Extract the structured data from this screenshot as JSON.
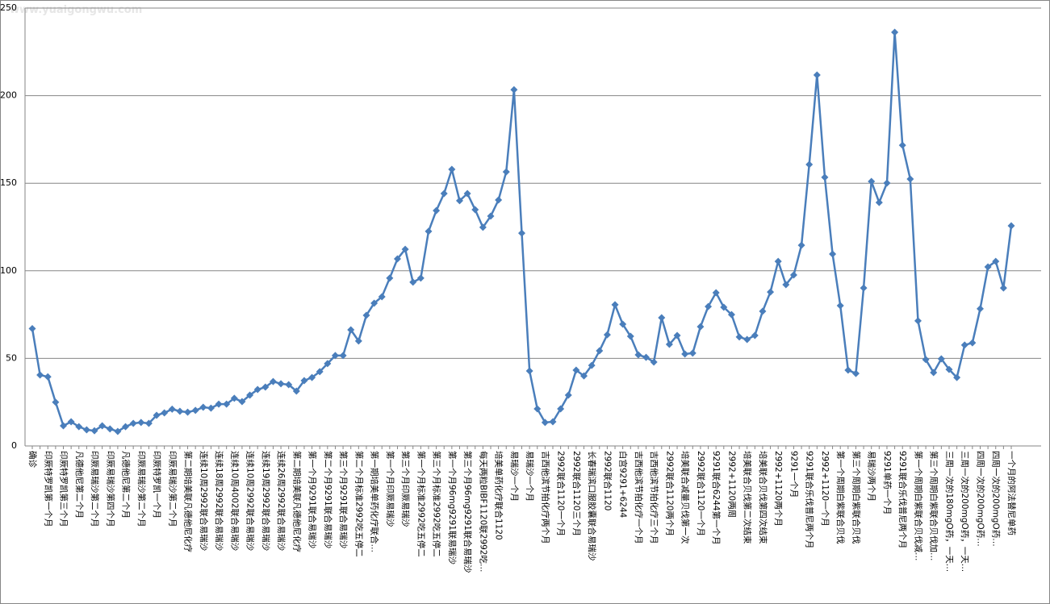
{
  "chart_data": {
    "type": "line",
    "watermark": "www.yuaigongwu.com",
    "categories": [
      "确诊",
      null,
      "印厥特罗凯第一个月",
      null,
      "印厥特罗凯第三个月",
      null,
      "凡德他尼第二个月",
      null,
      "印厥易瑞沙第二个月",
      null,
      "印厥易瑞沙第四个月",
      null,
      "凡德他尼第二个月",
      null,
      "印厥易瑞沙第二个月",
      null,
      "印厥特罗凯一个月",
      null,
      "印厥易瑞沙第二个月",
      null,
      "第二期培美联凡德他尼化疗",
      null,
      "连续10周2992联合易瑞沙",
      null,
      "连续18周2992联合易瑞沙",
      null,
      "连续10周4002联合易瑞沙",
      null,
      "连续10周2992联合易瑞沙",
      null,
      "连续19周2992联合易瑞沙",
      null,
      "连续26周2992联合易瑞沙",
      null,
      "第二期培美联凡德他尼化疗",
      null,
      "第一个月9291联合易瑞沙",
      null,
      "第二个月9291联合易瑞沙",
      null,
      "第三个月9291联合易瑞沙",
      null,
      "第二个月标准2992吃五停二",
      null,
      "第一期培美单药化疗联合…",
      null,
      "第一个月印厥易瑞沙",
      null,
      "第三个月印厥易瑞沙",
      null,
      "第一个月标准2992吃五停二",
      null,
      "第三个月标准2992吃五停二",
      null,
      "第一个月96mg9291联易瑞沙",
      null,
      "第三个月96mg9291联合易瑞沙",
      null,
      "每天两粒BIBF1120联2992吃…",
      null,
      "培美单药化疗联合1120",
      null,
      "易瑞沙一个月",
      null,
      "易瑞沙一个月",
      null,
      "吉西他滨节拍化疗两个月",
      null,
      "2992联合1120一个月",
      null,
      "2992联合1120三个月",
      null,
      "长春瑞滨口服胶囊联合易瑞沙",
      null,
      "2992联合1120",
      null,
      "白宫9291+6244",
      null,
      "吉西他滨节拍化疗一个月",
      null,
      "吉西他滨节拍化疗三个月",
      null,
      "2992联合1120两个月",
      null,
      "培美联合减量贝伐第一次",
      null,
      "2992联合1120一个月",
      null,
      "9291联合6244第一个月",
      null,
      "2992+1120两周",
      null,
      "培美联合贝伐第二次结束",
      null,
      "培美联合贝伐第四次结束",
      null,
      "2992+1120两个月",
      null,
      "9291一个月",
      null,
      "9291联合乐伐普尼两个月",
      null,
      "2992+1120一个月",
      null,
      "第一个周期白紫联合贝伐",
      null,
      "第三个周期白紫联合贝伐",
      null,
      "易瑞沙两个月",
      null,
      "9291单药一个月",
      null,
      "9291联合乐伐普尼两个月",
      null,
      "第一个周期白紫联合贝伐减…",
      null,
      "第三个周期白紫联合贝伐加…",
      null,
      "三周一次的180mgO药，一天…",
      null,
      "三周一次的200mgO药，一天…",
      null,
      "四周一次的200mgO药…",
      null,
      "四周一次的200mgO药…",
      null,
      "一个月的阿法替尼单药"
    ],
    "series": [
      {
        "color": "#4a7ebb",
        "values": [
          67,
          40.5,
          39.5,
          25,
          11.5,
          13.8,
          11,
          9.2,
          8.7,
          11.5,
          9.7,
          8.3,
          11,
          12.9,
          13.4,
          12.9,
          17.5,
          18.9,
          21,
          19.8,
          19.3,
          20.3,
          22.1,
          21.6,
          23.9,
          23.9,
          27.2,
          25.3,
          29,
          32.2,
          33.6,
          36.8,
          35.5,
          35,
          31.3,
          37.3,
          39.1,
          42.4,
          47,
          51.6,
          51.6,
          66.3,
          59.9,
          74.6,
          81.5,
          85.2,
          95.8,
          106.8,
          112.3,
          93.5,
          95.8,
          122.5,
          134.4,
          144.1,
          157.9,
          140,
          144.1,
          134.9,
          124.8,
          131.2,
          140.4,
          156.5,
          203.4,
          121.5,
          42.8,
          21.2,
          13.4,
          13.8,
          21.2,
          29,
          43.3,
          40,
          46,
          54.3,
          63.5,
          80.6,
          69.5,
          62.6,
          52,
          50.6,
          47.9,
          73.2,
          58,
          63.1,
          52.5,
          53,
          68.1,
          79.6,
          87.5,
          79.2,
          75,
          62.2,
          60.8,
          63.1,
          76.9,
          87.9,
          105.4,
          92.1,
          97.6,
          114.6,
          160.7,
          211.8,
          153.4,
          109.6,
          80.1,
          43.3,
          41.4,
          90.2,
          151,
          139,
          150.1,
          236.2,
          171.7,
          152.4,
          71.4,
          49.3,
          41.9,
          49.7,
          43.7,
          39.1,
          57.6,
          58.9,
          78.3,
          102.2,
          105.4,
          90.2,
          125.7
        ]
      }
    ],
    "ylim": [
      0,
      250
    ],
    "yticks": [
      0,
      50,
      100,
      150,
      200,
      250
    ],
    "grid": true
  }
}
